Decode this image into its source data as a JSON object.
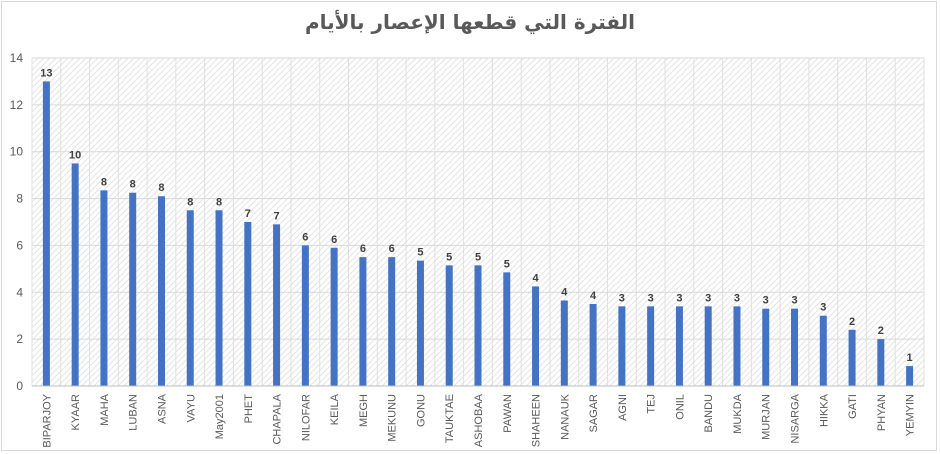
{
  "chart_data": {
    "type": "bar",
    "title": "الفترة التي قطعها الإعصار بالأيام",
    "xlabel": "",
    "ylabel": "",
    "ylim": [
      0,
      14
    ],
    "yticks": [
      0,
      2,
      4,
      6,
      8,
      10,
      12,
      14
    ],
    "grid": true,
    "legend": "none",
    "bar_color": "#4472c4",
    "categories": [
      "BIPARJOY",
      "KYAAR",
      "MAHA",
      "LUBAN",
      "ASNA",
      "VAYU",
      "May2001",
      "PHET",
      "CHAPALA",
      "NILOFAR",
      "KEILA",
      "MEGH",
      "MEKUNU",
      "GONU",
      "TAUKTAE",
      "ASHOBAA",
      "PAWAN",
      "SHAHEEN",
      "NANAUK",
      "SAGAR",
      "AGNI",
      "TEJ",
      "ONIL",
      "BANDU",
      "MUKDA",
      "MURJAN",
      "NISARGA",
      "HIKKA",
      "GATI",
      "PHYAN",
      "YEMYIN"
    ],
    "values": [
      13,
      9.5,
      8.35,
      8.25,
      8.1,
      7.5,
      7.5,
      7.0,
      6.9,
      6.0,
      5.9,
      5.5,
      5.5,
      5.35,
      5.15,
      5.15,
      4.85,
      4.25,
      3.65,
      3.5,
      3.4,
      3.4,
      3.4,
      3.4,
      3.4,
      3.3,
      3.3,
      3.0,
      2.4,
      2.0,
      0.85
    ],
    "data_labels": [
      "13",
      "10",
      "8",
      "8",
      "8",
      "8",
      "8",
      "7",
      "7",
      "6",
      "6",
      "6",
      "6",
      "5",
      "5",
      "5",
      "5",
      "4",
      "4",
      "4",
      "3",
      "3",
      "3",
      "3",
      "3",
      "3",
      "3",
      "3",
      "2",
      "2",
      "1"
    ]
  }
}
